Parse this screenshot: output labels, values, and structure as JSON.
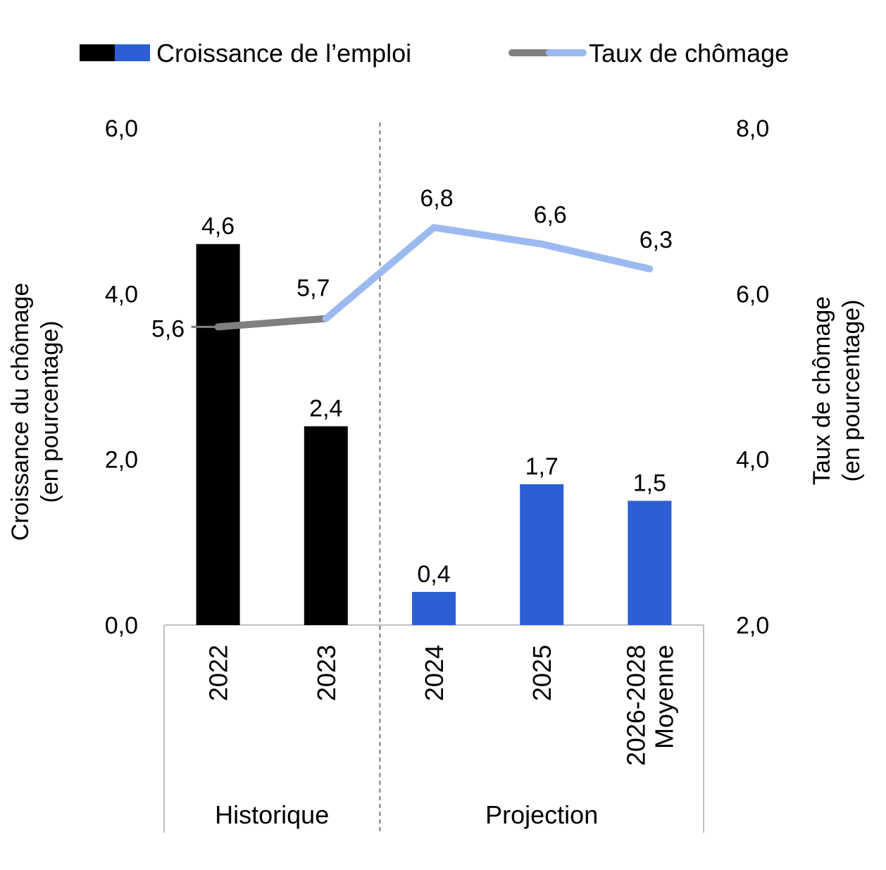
{
  "chart_data": {
    "type": "bar+line",
    "legend": {
      "position": "top",
      "entries": [
        {
          "label": "Croissance de l’emploi",
          "colors": [
            "#000000",
            "#2b5fd3"
          ]
        },
        {
          "label": "Taux de chômage",
          "colors": [
            "#808080",
            "#9dbaf0"
          ]
        }
      ]
    },
    "categories": [
      {
        "lines": [
          "2022"
        ],
        "group": 0
      },
      {
        "lines": [
          "2023"
        ],
        "group": 0
      },
      {
        "lines": [
          "2024"
        ],
        "group": 1
      },
      {
        "lines": [
          "2025"
        ],
        "group": 1
      },
      {
        "lines": [
          "2026-2028",
          "Moyenne"
        ],
        "group": 1
      }
    ],
    "groups": [
      "Historique",
      "Projection"
    ],
    "bars": {
      "values": [
        4.6,
        2.4,
        0.4,
        1.7,
        1.5
      ],
      "labels": [
        "4,6",
        "2,4",
        "0,4",
        "1,7",
        "1,5"
      ],
      "colors": [
        "#000000",
        "#000000",
        "#2b5fd3",
        "#2b5fd3",
        "#2b5fd3"
      ]
    },
    "line": {
      "values": [
        5.6,
        5.7,
        6.8,
        6.6,
        6.3
      ],
      "labels": [
        "5,6",
        "5,7",
        "6,8",
        "6,6",
        "6,3"
      ],
      "colors": {
        "historique": "#808080",
        "projection": "#9dbaf0"
      }
    },
    "y_left": {
      "title_lines": [
        "Croissance du chômage",
        "(en pourcentage)"
      ],
      "min": 0,
      "max": 6,
      "ticks": [
        "0,0",
        "2,0",
        "4,0",
        "6,0"
      ]
    },
    "y_right": {
      "title_lines": [
        "Taux de chômage",
        "(en pourcentage)"
      ],
      "min": 2,
      "max": 8,
      "ticks": [
        "2,0",
        "4,0",
        "6,0",
        "8,0"
      ]
    },
    "grid": false
  }
}
